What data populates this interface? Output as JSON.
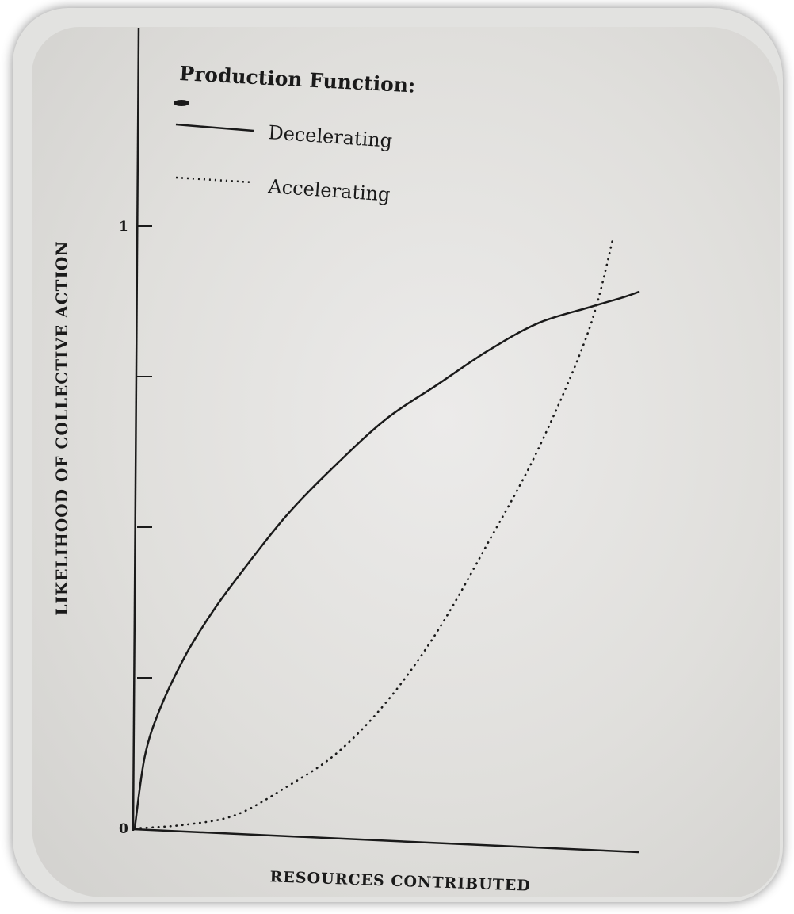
{
  "chart_data": {
    "type": "line",
    "title": "",
    "legend_title": "Production Function:",
    "legend_placement": "top-left",
    "xlabel": "RESOURCES CONTRIBUTED",
    "ylabel": "LIKELIHOOD OF COLLECTIVE ACTION",
    "xlim": [
      0,
      1
    ],
    "ylim": [
      0,
      1
    ],
    "y_ticks": [
      {
        "value": 0,
        "label": "0"
      },
      {
        "value": 0.25,
        "label": ""
      },
      {
        "value": 0.5,
        "label": ""
      },
      {
        "value": 0.75,
        "label": ""
      },
      {
        "value": 1,
        "label": "1"
      }
    ],
    "grid": false,
    "series": [
      {
        "name": "Decelerating",
        "style": "solid",
        "x": [
          0,
          0.02,
          0.05,
          0.1,
          0.15,
          0.2,
          0.3,
          0.4,
          0.5,
          0.6,
          0.7,
          0.8,
          0.9,
          0.97,
          1.0
        ],
        "y": [
          0,
          0.12,
          0.2,
          0.29,
          0.36,
          0.42,
          0.53,
          0.62,
          0.7,
          0.76,
          0.82,
          0.87,
          0.9,
          0.92,
          0.93
        ]
      },
      {
        "name": "Accelerating",
        "style": "dotted",
        "x": [
          0,
          0.1,
          0.2,
          0.3,
          0.4,
          0.5,
          0.6,
          0.7,
          0.8,
          0.9,
          0.95
        ],
        "y": [
          0,
          0.01,
          0.03,
          0.08,
          0.14,
          0.23,
          0.35,
          0.5,
          0.66,
          0.86,
          1.02
        ]
      }
    ]
  },
  "colors": {
    "ink": "#1a1a1a",
    "paper": "#e6e5e3"
  }
}
